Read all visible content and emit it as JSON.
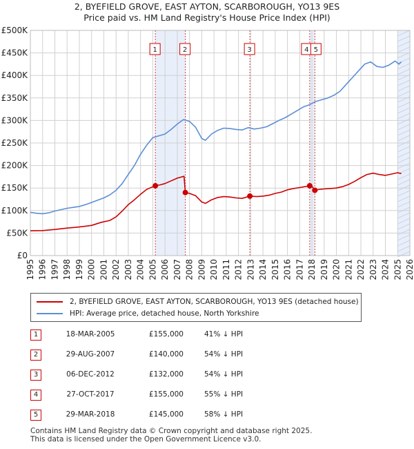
{
  "title": "2, BYEFIELD GROVE, EAST AYTON, SCARBOROUGH, YO13 9ES",
  "subtitle": "Price paid vs. HM Land Registry's House Price Index (HPI)",
  "colors": {
    "price_paid": "#cc0000",
    "hpi": "#5b8ed6",
    "shade": "#e8effa",
    "grid": "#d0d0d0",
    "marker_line": "#d04040"
  },
  "chart_data": {
    "type": "line",
    "title": "2, BYEFIELD GROVE, EAST AYTON, SCARBOROUGH, YO13 9ES",
    "subtitle": "Price paid vs. HM Land Registry's House Price Index (HPI)",
    "xlabel": "",
    "ylabel": "",
    "xlim": [
      1995,
      2026
    ],
    "ylim": [
      0,
      500000
    ],
    "x_ticks": [
      "1995",
      "1996",
      "1997",
      "1998",
      "1999",
      "2000",
      "2001",
      "2002",
      "2003",
      "2004",
      "2005",
      "2006",
      "2007",
      "2008",
      "2009",
      "2010",
      "2011",
      "2012",
      "2013",
      "2014",
      "2015",
      "2016",
      "2017",
      "2018",
      "2019",
      "2020",
      "2021",
      "2022",
      "2023",
      "2024",
      "2025",
      "2026"
    ],
    "y_ticks": [
      {
        "value": 0,
        "label": "£0"
      },
      {
        "value": 50000,
        "label": "£50K"
      },
      {
        "value": 100000,
        "label": "£100K"
      },
      {
        "value": 150000,
        "label": "£150K"
      },
      {
        "value": 200000,
        "label": "£200K"
      },
      {
        "value": 250000,
        "label": "£250K"
      },
      {
        "value": 300000,
        "label": "£300K"
      },
      {
        "value": 350000,
        "label": "£350K"
      },
      {
        "value": 400000,
        "label": "£400K"
      },
      {
        "value": 450000,
        "label": "£450K"
      },
      {
        "value": 500000,
        "label": "£500K"
      }
    ],
    "grid": true,
    "legend_position": "below",
    "series": [
      {
        "name": "2, BYEFIELD GROVE, EAST AYTON, SCARBOROUGH, YO13 9ES (detached house)",
        "color": "#cc0000",
        "points": [
          [
            1995.0,
            55000
          ],
          [
            1996.0,
            55500
          ],
          [
            1997.0,
            58000
          ],
          [
            1998.0,
            61000
          ],
          [
            1999.0,
            63500
          ],
          [
            2000.0,
            67000
          ],
          [
            2000.8,
            74000
          ],
          [
            2001.5,
            78000
          ],
          [
            2002.0,
            86000
          ],
          [
            2002.5,
            99000
          ],
          [
            2003.0,
            113000
          ],
          [
            2003.5,
            124000
          ],
          [
            2004.0,
            136000
          ],
          [
            2004.5,
            147000
          ],
          [
            2005.21,
            155000
          ],
          [
            2005.6,
            157000
          ],
          [
            2006.0,
            160000
          ],
          [
            2006.5,
            166000
          ],
          [
            2007.0,
            172000
          ],
          [
            2007.55,
            176000
          ],
          [
            2007.66,
            140000
          ],
          [
            2008.0,
            138000
          ],
          [
            2008.5,
            133000
          ],
          [
            2009.0,
            119000
          ],
          [
            2009.3,
            116000
          ],
          [
            2009.8,
            124000
          ],
          [
            2010.3,
            129000
          ],
          [
            2010.8,
            131000
          ],
          [
            2011.3,
            130000
          ],
          [
            2011.8,
            128000
          ],
          [
            2012.3,
            127000
          ],
          [
            2012.93,
            132000
          ],
          [
            2013.5,
            131000
          ],
          [
            2014.0,
            132000
          ],
          [
            2014.5,
            134000
          ],
          [
            2015.0,
            138000
          ],
          [
            2015.5,
            141000
          ],
          [
            2016.0,
            146000
          ],
          [
            2016.5,
            149000
          ],
          [
            2017.0,
            151000
          ],
          [
            2017.82,
            155000
          ],
          [
            2018.0,
            154000
          ],
          [
            2018.24,
            145000
          ],
          [
            2018.6,
            147000
          ],
          [
            2019.0,
            148000
          ],
          [
            2019.5,
            149000
          ],
          [
            2020.0,
            150000
          ],
          [
            2020.5,
            153000
          ],
          [
            2021.0,
            158000
          ],
          [
            2021.5,
            165000
          ],
          [
            2022.0,
            173000
          ],
          [
            2022.5,
            180000
          ],
          [
            2023.0,
            183000
          ],
          [
            2023.5,
            180000
          ],
          [
            2024.0,
            178000
          ],
          [
            2024.5,
            181000
          ],
          [
            2025.0,
            184000
          ],
          [
            2025.3,
            182000
          ]
        ]
      },
      {
        "name": "HPI: Average price, detached house, North Yorkshire",
        "color": "#5b8ed6",
        "points": [
          [
            1995.0,
            96000
          ],
          [
            1995.5,
            94000
          ],
          [
            1996.0,
            93000
          ],
          [
            1996.5,
            95000
          ],
          [
            1997.0,
            99000
          ],
          [
            1997.5,
            102000
          ],
          [
            1998.0,
            105000
          ],
          [
            1998.5,
            107000
          ],
          [
            1999.0,
            109000
          ],
          [
            1999.5,
            113000
          ],
          [
            2000.0,
            118000
          ],
          [
            2000.5,
            123000
          ],
          [
            2001.0,
            128000
          ],
          [
            2001.5,
            135000
          ],
          [
            2002.0,
            145000
          ],
          [
            2002.5,
            160000
          ],
          [
            2003.0,
            180000
          ],
          [
            2003.5,
            200000
          ],
          [
            2004.0,
            225000
          ],
          [
            2004.5,
            245000
          ],
          [
            2005.0,
            262000
          ],
          [
            2005.5,
            266000
          ],
          [
            2006.0,
            270000
          ],
          [
            2006.5,
            280000
          ],
          [
            2007.0,
            292000
          ],
          [
            2007.5,
            302000
          ],
          [
            2008.0,
            298000
          ],
          [
            2008.5,
            285000
          ],
          [
            2009.0,
            260000
          ],
          [
            2009.3,
            256000
          ],
          [
            2009.8,
            270000
          ],
          [
            2010.3,
            278000
          ],
          [
            2010.8,
            283000
          ],
          [
            2011.3,
            282000
          ],
          [
            2011.8,
            280000
          ],
          [
            2012.3,
            279000
          ],
          [
            2012.8,
            284000
          ],
          [
            2013.3,
            281000
          ],
          [
            2013.8,
            283000
          ],
          [
            2014.3,
            286000
          ],
          [
            2014.8,
            293000
          ],
          [
            2015.3,
            300000
          ],
          [
            2015.8,
            306000
          ],
          [
            2016.3,
            314000
          ],
          [
            2016.8,
            322000
          ],
          [
            2017.3,
            330000
          ],
          [
            2017.8,
            335000
          ],
          [
            2018.3,
            342000
          ],
          [
            2018.8,
            346000
          ],
          [
            2019.3,
            350000
          ],
          [
            2019.8,
            356000
          ],
          [
            2020.3,
            365000
          ],
          [
            2020.8,
            380000
          ],
          [
            2021.3,
            395000
          ],
          [
            2021.8,
            410000
          ],
          [
            2022.3,
            425000
          ],
          [
            2022.8,
            430000
          ],
          [
            2023.3,
            420000
          ],
          [
            2023.8,
            418000
          ],
          [
            2024.3,
            423000
          ],
          [
            2024.8,
            432000
          ],
          [
            2025.1,
            425000
          ],
          [
            2025.3,
            430000
          ]
        ]
      }
    ],
    "sales": [
      {
        "label": "1",
        "x": 2005.21,
        "price": 155000
      },
      {
        "label": "2",
        "x": 2007.66,
        "price": 140000
      },
      {
        "label": "3",
        "x": 2012.93,
        "price": 132000
      },
      {
        "label": "4",
        "x": 2017.82,
        "price": 155000
      },
      {
        "label": "5",
        "x": 2018.24,
        "price": 145000
      }
    ],
    "shaded_regions": [
      [
        2005.21,
        2007.66
      ],
      [
        2017.82,
        2018.24
      ],
      [
        2025.0,
        2026.0
      ]
    ]
  },
  "legend": [
    {
      "label": "2, BYEFIELD GROVE, EAST AYTON, SCARBOROUGH, YO13 9ES (detached house)",
      "color": "#cc0000"
    },
    {
      "label": "HPI: Average price, detached house, North Yorkshire",
      "color": "#5b8ed6"
    }
  ],
  "transactions": [
    {
      "num": "1",
      "date": "18-MAR-2005",
      "price": "£155,000",
      "hpi": "41% ↓ HPI"
    },
    {
      "num": "2",
      "date": "29-AUG-2007",
      "price": "£140,000",
      "hpi": "54% ↓ HPI"
    },
    {
      "num": "3",
      "date": "06-DEC-2012",
      "price": "£132,000",
      "hpi": "54% ↓ HPI"
    },
    {
      "num": "4",
      "date": "27-OCT-2017",
      "price": "£155,000",
      "hpi": "55% ↓ HPI"
    },
    {
      "num": "5",
      "date": "29-MAR-2018",
      "price": "£145,000",
      "hpi": "58% ↓ HPI"
    }
  ],
  "footer": {
    "line1": "Contains HM Land Registry data © Crown copyright and database right 2025.",
    "line2": "This data is licensed under the Open Government Licence v3.0."
  }
}
